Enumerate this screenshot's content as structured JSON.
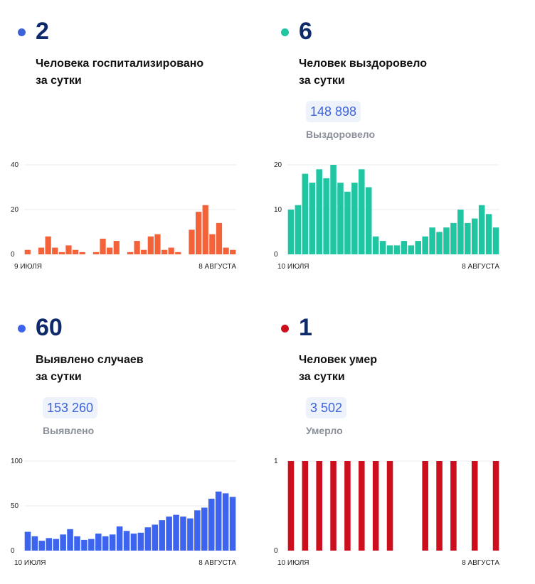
{
  "cards": [
    {
      "value": "2",
      "desc_line1": "Человека госпитализировано",
      "desc_line2": "за сутки",
      "total": "",
      "total_label": "",
      "color": "#f4623a",
      "dot_color": "#3c64d8"
    },
    {
      "value": "6",
      "desc_line1": "Человек выздоровело",
      "desc_line2": "за сутки",
      "total": "148 898",
      "total_label": "Выздоровело",
      "color": "#1fc6a1",
      "dot_color": "#1fc6a1"
    },
    {
      "value": "60",
      "desc_line1": "Выявлено случаев",
      "desc_line2": "за сутки",
      "total": "153 260",
      "total_label": "Выявлено",
      "color": "#3c64ee",
      "dot_color": "#3c64ee"
    },
    {
      "value": "1",
      "desc_line1": "Человек умер",
      "desc_line2": "за сутки",
      "total": "3 502",
      "total_label": "Умерло",
      "color": "#cc0e1d",
      "dot_color": "#cc0e1d"
    }
  ],
  "chart_data": [
    {
      "type": "bar",
      "x_start": "9 ИЮЛЯ",
      "x_end": "8 АВГУСТА",
      "ylim": [
        0,
        40
      ],
      "yticks": [
        0,
        20,
        40
      ],
      "values": [
        2,
        0,
        3,
        8,
        3,
        1,
        4,
        2,
        1,
        0,
        1,
        7,
        3,
        6,
        0,
        1,
        6,
        2,
        8,
        9,
        2,
        3,
        1,
        0,
        11,
        19,
        22,
        9,
        14,
        3,
        2
      ]
    },
    {
      "type": "bar",
      "x_start": "10 ИЮЛЯ",
      "x_end": "8 АВГУСТА",
      "ylim": [
        0,
        20
      ],
      "yticks": [
        0,
        10,
        20
      ],
      "values": [
        10,
        11,
        18,
        16,
        19,
        17,
        20,
        16,
        14,
        16,
        19,
        15,
        4,
        3,
        2,
        2,
        3,
        2,
        3,
        4,
        6,
        5,
        6,
        7,
        10,
        7,
        8,
        11,
        9,
        6
      ]
    },
    {
      "type": "bar",
      "x_start": "10 ИЮЛЯ",
      "x_end": "8 АВГУСТА",
      "ylim": [
        0,
        100
      ],
      "yticks": [
        0,
        50,
        100
      ],
      "values": [
        21,
        16,
        11,
        14,
        13,
        18,
        24,
        16,
        12,
        13,
        19,
        16,
        18,
        27,
        22,
        19,
        20,
        26,
        29,
        34,
        38,
        40,
        38,
        36,
        45,
        48,
        58,
        66,
        64,
        60
      ]
    },
    {
      "type": "bar",
      "x_start": "10 ИЮЛЯ",
      "x_end": "8 АВГУСТА",
      "ylim": [
        0,
        1
      ],
      "yticks": [
        0,
        1
      ],
      "values": [
        1,
        0,
        1,
        0,
        1,
        0,
        1,
        0,
        1,
        0,
        1,
        0,
        1,
        0,
        1,
        0,
        0,
        0,
        0,
        1,
        0,
        1,
        0,
        1,
        0,
        0,
        1,
        0,
        0,
        1
      ]
    }
  ]
}
